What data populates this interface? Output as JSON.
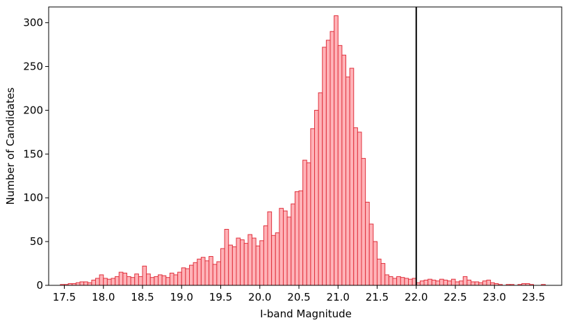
{
  "chart_data": {
    "type": "histogram",
    "xlabel": "I-band Magnitude",
    "ylabel": "Number of Candidates",
    "bins": [
      17.45,
      17.5,
      17.55,
      17.6,
      17.65,
      17.7,
      17.75,
      17.8,
      17.85,
      17.9,
      17.95,
      18.0,
      18.05,
      18.1,
      18.15,
      18.2,
      18.25,
      18.3,
      18.35,
      18.4,
      18.45,
      18.5,
      18.55,
      18.6,
      18.65,
      18.7,
      18.75,
      18.8,
      18.85,
      18.9,
      18.95,
      19.0,
      19.05,
      19.1,
      19.15,
      19.2,
      19.25,
      19.3,
      19.35,
      19.4,
      19.45,
      19.5,
      19.55,
      19.6,
      19.65,
      19.7,
      19.75,
      19.8,
      19.85,
      19.9,
      19.95,
      20.0,
      20.05,
      20.1,
      20.15,
      20.2,
      20.25,
      20.3,
      20.35,
      20.4,
      20.45,
      20.5,
      20.55,
      20.6,
      20.65,
      20.7,
      20.75,
      20.8,
      20.85,
      20.9,
      20.95,
      21.0,
      21.05,
      21.1,
      21.15,
      21.2,
      21.25,
      21.3,
      21.35,
      21.4,
      21.45,
      21.5,
      21.55,
      21.6,
      21.65,
      21.7,
      21.75,
      21.8,
      21.85,
      21.9,
      21.95,
      22.0,
      22.05,
      22.1,
      22.15,
      22.2,
      22.25,
      22.3,
      22.35,
      22.4,
      22.45,
      22.5,
      22.55,
      22.6,
      22.65,
      22.7,
      22.75,
      22.8,
      22.85,
      22.9,
      22.95,
      23.0,
      23.05,
      23.1,
      23.15,
      23.2,
      23.25,
      23.3,
      23.35,
      23.4,
      23.45,
      23.5,
      23.55,
      23.6,
      23.65,
      23.7
    ],
    "values": [
      1,
      1,
      2,
      2,
      3,
      4,
      4,
      3,
      6,
      8,
      12,
      8,
      7,
      8,
      10,
      15,
      14,
      10,
      9,
      13,
      10,
      22,
      13,
      9,
      10,
      12,
      11,
      9,
      14,
      12,
      15,
      20,
      19,
      23,
      26,
      30,
      32,
      28,
      33,
      24,
      27,
      42,
      64,
      46,
      44,
      54,
      52,
      48,
      58,
      54,
      45,
      51,
      68,
      84,
      57,
      60,
      88,
      85,
      78,
      93,
      107,
      108,
      143,
      140,
      179,
      200,
      220,
      272,
      280,
      290,
      308,
      274,
      263,
      238,
      248,
      180,
      175,
      145,
      95,
      70,
      50,
      30,
      25,
      12,
      10,
      8,
      10,
      9,
      8,
      7,
      8,
      3,
      5,
      6,
      7,
      6,
      5,
      7,
      6,
      5,
      7,
      4,
      5,
      10,
      6,
      4,
      4,
      3,
      5,
      6,
      3,
      2,
      1,
      0,
      1,
      1,
      0,
      1,
      2,
      2,
      1,
      0,
      0,
      1,
      0
    ],
    "color": "#ffb3b8",
    "edgecolor": "#e0303c",
    "vline": 22.0,
    "xlim": [
      17.3,
      23.86
    ],
    "ylim": [
      0,
      318
    ],
    "xticks": [
      17.5,
      {
        "value": 18,
        "label": "18.0"
      },
      18.5,
      {
        "value": 19,
        "label": "19.0"
      },
      19.5,
      {
        "value": 20,
        "label": "20.0"
      },
      20.5,
      {
        "value": 21,
        "label": "21.0"
      },
      21.5,
      {
        "value": 22,
        "label": "22.0"
      },
      22.5,
      {
        "value": 23,
        "label": "23.0"
      },
      23.5
    ],
    "yticks": [
      0,
      50,
      100,
      150,
      200,
      250,
      300
    ]
  }
}
